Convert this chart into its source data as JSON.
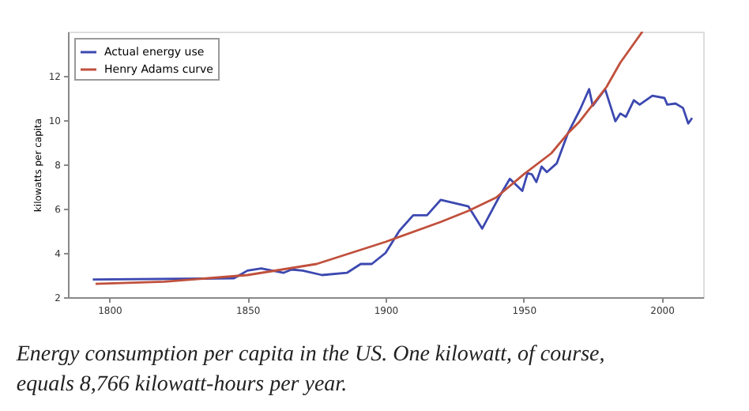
{
  "chart_data": {
    "type": "line",
    "ylabel": "kilowatts per capita",
    "xlim": [
      1785,
      2015
    ],
    "xticks": [
      1800,
      1850,
      1900,
      1950,
      2000
    ],
    "ylim": [
      2,
      14
    ],
    "yticks": [
      2,
      4,
      6,
      8,
      10,
      12
    ],
    "grid": false,
    "legend": "top left",
    "marker": "none",
    "line_style": "solid",
    "annotations": [
      "Energy consumption per capita in the US. One kilowatt, of course, equals 8,766 kilowatt-hours per year."
    ],
    "series": [
      {
        "name": "Actual energy use",
        "color": "#3c48b0",
        "x": [
          1794,
          1845,
          1850,
          1855,
          1863,
          1866,
          1870,
          1877,
          1886,
          1891,
          1895,
          1900,
          1905,
          1910,
          1915,
          1920,
          1930,
          1935,
          1941,
          1945,
          1949.5,
          1951.4,
          1953,
          1954.6,
          1956.5,
          1958.4,
          1962,
          1966,
          1970.5,
          1973.7,
          1975,
          1979.5,
          1983.2,
          1985,
          1987,
          1989.9,
          1992,
          1996.6,
          2001,
          2002,
          2005,
          2007.7,
          2009.6,
          2011
        ],
        "values": [
          2.8,
          2.85,
          3.2,
          3.3,
          3.1,
          3.25,
          3.2,
          3.0,
          3.1,
          3.5,
          3.5,
          4.0,
          5.0,
          5.7,
          5.7,
          6.4,
          6.1,
          5.1,
          6.5,
          7.35,
          6.8,
          7.6,
          7.55,
          7.2,
          7.9,
          7.65,
          8.05,
          9.4,
          10.5,
          11.4,
          10.65,
          11.4,
          9.95,
          10.3,
          10.15,
          10.9,
          10.7,
          11.1,
          11.0,
          10.7,
          10.75,
          10.55,
          9.85,
          10.1
        ]
      },
      {
        "name": "Henry Adams curve",
        "color": "#c0503c",
        "x": [
          1795,
          1820,
          1850,
          1875,
          1900,
          1920,
          1930,
          1940,
          1950,
          1960,
          1966,
          1970,
          1980,
          1985,
          1993
        ],
        "values": [
          2.6,
          2.7,
          3.0,
          3.5,
          4.5,
          5.4,
          5.9,
          6.5,
          7.55,
          8.5,
          9.4,
          9.9,
          11.5,
          12.6,
          14
        ]
      }
    ]
  }
}
